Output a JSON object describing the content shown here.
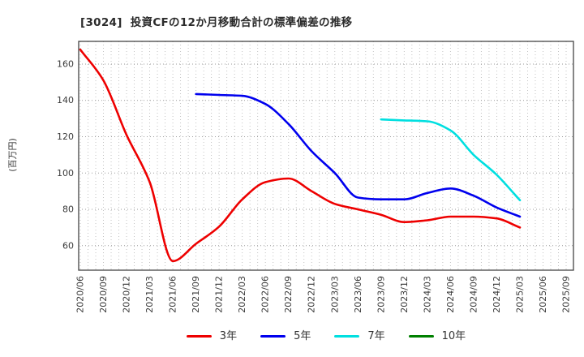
{
  "chart_data": {
    "type": "line",
    "title": "[3024]  投資CFの12か月移動合計の標準偏差の推移",
    "ylabel": "(百万円)",
    "xlabel": "",
    "categories": [
      "2020/06",
      "2020/09",
      "2020/12",
      "2021/03",
      "2021/06",
      "2021/09",
      "2021/12",
      "2022/03",
      "2022/06",
      "2022/09",
      "2022/12",
      "2023/03",
      "2023/06",
      "2023/09",
      "2023/12",
      "2024/03",
      "2024/06",
      "2024/09",
      "2024/12",
      "2025/03",
      "2025/06",
      "2025/09"
    ],
    "yticks": [
      60,
      80,
      100,
      120,
      140,
      160
    ],
    "ylim": [
      46.5,
      172.5
    ],
    "grid": true,
    "minor_vertical_grid": "monthly",
    "legend_position": "bottom",
    "series": [
      {
        "name": "3年",
        "color": "#ee0000",
        "values": [
          168,
          151,
          121,
          95,
          51.5,
          61,
          70.5,
          85.5,
          95,
          97,
          90,
          83,
          80,
          77,
          73,
          74,
          76,
          76,
          75,
          70,
          null,
          null
        ]
      },
      {
        "name": "5年",
        "color": "#0000ee",
        "values": [
          null,
          null,
          null,
          null,
          null,
          143.5,
          143,
          142.5,
          138,
          127,
          112,
          100,
          86.5,
          85.5,
          85.5,
          89,
          91.5,
          87.5,
          81,
          76,
          null,
          null
        ]
      },
      {
        "name": "7年",
        "color": "#00dfe0",
        "values": [
          null,
          null,
          null,
          null,
          null,
          null,
          null,
          null,
          null,
          null,
          null,
          null,
          null,
          129.5,
          129,
          128.5,
          123.5,
          110,
          99,
          85,
          null,
          null
        ]
      },
      {
        "name": "10年",
        "color": "#008000",
        "values": [
          null,
          null,
          null,
          null,
          null,
          null,
          null,
          null,
          null,
          null,
          null,
          null,
          null,
          null,
          null,
          null,
          null,
          null,
          null,
          null,
          null,
          null
        ]
      }
    ],
    "colors": {
      "spine": "#444444",
      "h_grid": "#9a9a9a",
      "v_grid": "#bdbdbd",
      "tick_text": "#3a3a3a"
    }
  }
}
